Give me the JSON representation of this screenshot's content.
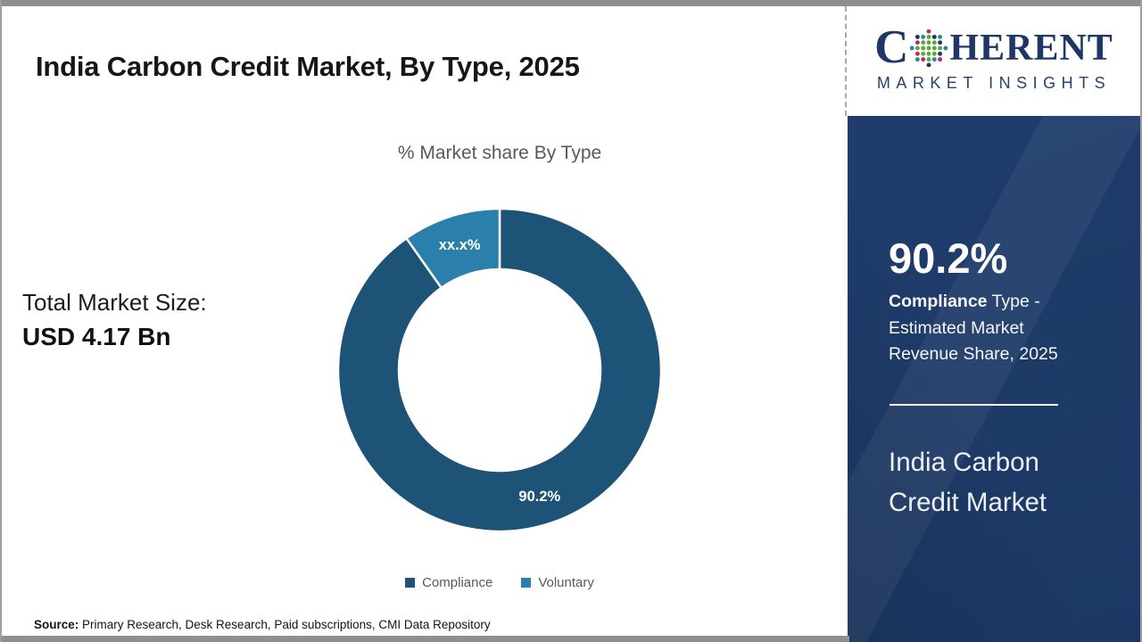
{
  "header": {
    "title": "India Carbon Credit Market, By Type, 2025"
  },
  "logo": {
    "prefix": "C",
    "suffix": "HERENT",
    "subtitle": "MARKET INSIGHTS",
    "icon": "dotted-globe-icon",
    "navy": "#1e3766",
    "dot_colors": [
      "#5ba83b",
      "#2e8796",
      "#1e3766",
      "#c0266d"
    ]
  },
  "left_panel": {
    "total_label": "Total Market Size:",
    "total_value": "USD 4.17 Bn"
  },
  "chart_data": {
    "type": "donut",
    "title": "% Market share By Type",
    "categories": [
      "Compliance",
      "Voluntary"
    ],
    "values": [
      90.2,
      9.8
    ],
    "slice_labels": [
      "90.2%",
      "xx.x%"
    ],
    "colors": [
      "#1d5377",
      "#2a7fab"
    ],
    "legend_position": "bottom",
    "start_angle_deg": 0,
    "direction": "clockwise",
    "hole": true
  },
  "sidebar": {
    "headline_value": "90.2%",
    "description_bold": "Compliance",
    "description_rest": " Type - Estimated Market Revenue Share, 2025",
    "footer_title": "India Carbon Credit Market",
    "bg": "#1e3a66"
  },
  "footer": {
    "source_label": "Source:",
    "source_text": " Primary Research, Desk Research, Paid subscriptions, CMI Data Repository"
  }
}
